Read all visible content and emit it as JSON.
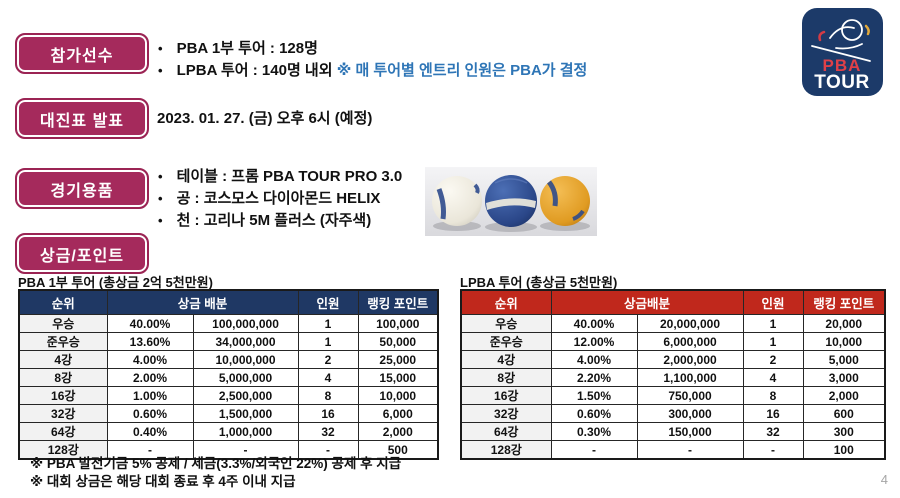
{
  "colors": {
    "accent_magenta": "#A52A5C",
    "pba_header_navy": "#1F3864",
    "lpba_header_red": "#C0281C",
    "note_blue": "#2E75B6"
  },
  "logo": {
    "line1": "PBA",
    "line2": "TOUR"
  },
  "sections": {
    "participants": {
      "label": "참가선수",
      "bullets": [
        {
          "text": "PBA 1부 투어 : 128명",
          "note": ""
        },
        {
          "text": "LPBA 투어 : 140명 내외",
          "note": "※ 매 투어별 엔트리 인원은 PBA가 결정"
        }
      ]
    },
    "bracket": {
      "label": "대진표 발표",
      "text": "2023. 01. 27. (금) 오후 6시 (예정)"
    },
    "equipment": {
      "label": "경기용품",
      "bullets": [
        "테이블 : 프롬 PBA TOUR PRO 3.0",
        "공 : 코스모스 다이아몬드 HELIX",
        "천 : 고리나 5M 플러스 (자주색)"
      ]
    },
    "prize": {
      "label": "상금/포인트"
    }
  },
  "tables": [
    {
      "title": "PBA 1부 투어 (총상금 2억 5천만원)",
      "header_color": "#1F3864",
      "headers": [
        "순위",
        "상금 배분",
        "인원",
        "랭킹 포인트"
      ],
      "rows": [
        [
          "우승",
          "40.00%",
          "100,000,000",
          "1",
          "100,000"
        ],
        [
          "준우승",
          "13.60%",
          "34,000,000",
          "1",
          "50,000"
        ],
        [
          "4강",
          "4.00%",
          "10,000,000",
          "2",
          "25,000"
        ],
        [
          "8강",
          "2.00%",
          "5,000,000",
          "4",
          "15,000"
        ],
        [
          "16강",
          "1.00%",
          "2,500,000",
          "8",
          "10,000"
        ],
        [
          "32강",
          "0.60%",
          "1,500,000",
          "16",
          "6,000"
        ],
        [
          "64강",
          "0.40%",
          "1,000,000",
          "32",
          "2,000"
        ],
        [
          "128강",
          "-",
          "-",
          "-",
          "500"
        ]
      ]
    },
    {
      "title": "LPBA 투어 (총상금 5천만원)",
      "header_color": "#C0281C",
      "headers": [
        "순위",
        "상금배분",
        "인원",
        "랭킹 포인트"
      ],
      "rows": [
        [
          "우승",
          "40.00%",
          "20,000,000",
          "1",
          "20,000"
        ],
        [
          "준우승",
          "12.00%",
          "6,000,000",
          "1",
          "10,000"
        ],
        [
          "4강",
          "4.00%",
          "2,000,000",
          "2",
          "5,000"
        ],
        [
          "8강",
          "2.20%",
          "1,100,000",
          "4",
          "3,000"
        ],
        [
          "16강",
          "1.50%",
          "750,000",
          "8",
          "2,000"
        ],
        [
          "32강",
          "0.60%",
          "300,000",
          "16",
          "600"
        ],
        [
          "64강",
          "0.30%",
          "150,000",
          "32",
          "300"
        ],
        [
          "128강",
          "-",
          "-",
          "-",
          "100"
        ]
      ]
    }
  ],
  "footnotes": [
    "※ PBA 발전기금 5% 공제 / 세금(3.3%/외국인 22%) 공제 후 지급",
    "※ 대회 상금은 해당 대회 종료 후 4주 이내 지급"
  ],
  "page_number": "4"
}
